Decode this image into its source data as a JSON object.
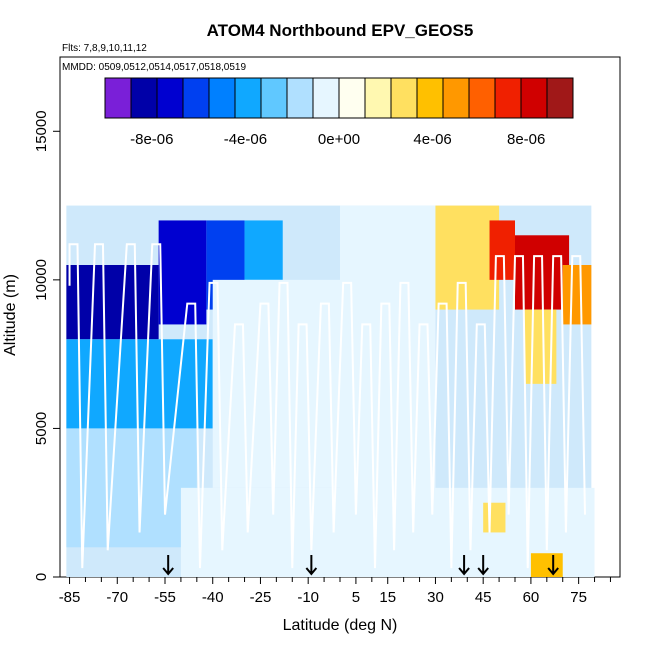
{
  "chart_data": {
    "type": "heatmap",
    "title": "ATOM4 Northbound EPV_GEOS5",
    "flights_label": "Flts: 7,8,9,10,11,12",
    "mmdd_label": "MMDD: 0509,0512,0514,0517,0518,0519",
    "xlabel": "Latitude (deg N)",
    "ylabel": "Altitude (m)",
    "xlim": [
      -88,
      88
    ],
    "ylim": [
      0,
      17500
    ],
    "x_ticks": [
      -85,
      -70,
      -55,
      -40,
      -25,
      -10,
      5,
      15,
      30,
      45,
      60,
      75
    ],
    "y_ticks": [
      0,
      5000,
      10000,
      15000
    ],
    "colorbar": {
      "ticks": [
        "-8e-06",
        "-4e-06",
        "0e+00",
        "4e-06",
        "8e-06"
      ],
      "tick_values": [
        -8e-06,
        -4e-06,
        0,
        4e-06,
        8e-06
      ],
      "range": [
        -1e-05,
        1e-05
      ],
      "colors": [
        "#7a1fd8",
        "#0000a8",
        "#0000d0",
        "#0040f0",
        "#0080ff",
        "#10a8ff",
        "#60c8ff",
        "#b0e0ff",
        "#e6f6ff",
        "#fffff0",
        "#fff8b0",
        "#ffe060",
        "#ffc000",
        "#ff9800",
        "#ff6000",
        "#f02000",
        "#d00000",
        "#a01818"
      ]
    },
    "arrow_latitudes": [
      -54,
      -9,
      39,
      45,
      67
    ],
    "cells": [
      {
        "lat": [
          -86,
          -57
        ],
        "alt": [
          8000,
          10500
        ],
        "v": -8.5e-06
      },
      {
        "lat": [
          -57,
          -42
        ],
        "alt": [
          8500,
          12000
        ],
        "v": -7.5e-06
      },
      {
        "lat": [
          -42,
          -30
        ],
        "alt": [
          9000,
          12000
        ],
        "v": -6e-06
      },
      {
        "lat": [
          -30,
          -18
        ],
        "alt": [
          10000,
          12000
        ],
        "v": -3.5e-06
      },
      {
        "lat": [
          -86,
          -40
        ],
        "alt": [
          5000,
          8000
        ],
        "v": -3.5e-06
      },
      {
        "lat": [
          -86,
          -45
        ],
        "alt": [
          1000,
          5000
        ],
        "v": -1.5e-06
      },
      {
        "lat": [
          -40,
          0
        ],
        "alt": [
          3000,
          10000
        ],
        "v": -8e-07
      },
      {
        "lat": [
          0,
          30
        ],
        "alt": [
          2000,
          12500
        ],
        "v": -5e-07
      },
      {
        "lat": [
          30,
          50
        ],
        "alt": [
          9000,
          12500
        ],
        "v": 2.5e-06
      },
      {
        "lat": [
          47,
          55
        ],
        "alt": [
          10000,
          12000
        ],
        "v": 7e-06
      },
      {
        "lat": [
          55,
          72
        ],
        "alt": [
          9000,
          11500
        ],
        "v": 8.5e-06
      },
      {
        "lat": [
          70,
          79
        ],
        "alt": [
          8500,
          10500
        ],
        "v": 5.5e-06
      },
      {
        "lat": [
          58,
          68
        ],
        "alt": [
          6500,
          9000
        ],
        "v": 2.5e-06
      },
      {
        "lat": [
          -50,
          80
        ],
        "alt": [
          0,
          3000
        ],
        "v": -6e-07
      },
      {
        "lat": [
          45,
          52
        ],
        "alt": [
          1500,
          2500
        ],
        "v": 2.5e-06
      },
      {
        "lat": [
          60,
          70
        ],
        "alt": [
          0,
          800
        ],
        "v": 4e-06
      }
    ]
  }
}
